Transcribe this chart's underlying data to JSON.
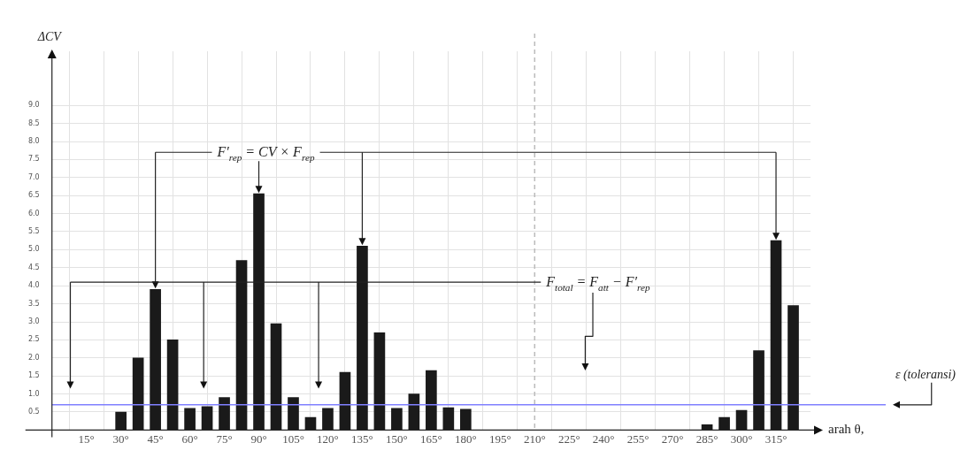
{
  "chart_data": {
    "type": "bar",
    "xlabel": "arah θ,",
    "ylabel": "ΔCV",
    "x": [
      30,
      37.5,
      45,
      52.5,
      60,
      67.5,
      75,
      82.5,
      90,
      97.5,
      105,
      112.5,
      120,
      127.5,
      135,
      142.5,
      150,
      157.5,
      165,
      172.5,
      180,
      285,
      292.5,
      300,
      307.5,
      315,
      322.5
    ],
    "values": [
      0.5,
      2.0,
      3.9,
      2.5,
      0.6,
      0.65,
      0.9,
      4.7,
      6.55,
      2.95,
      0.9,
      0.35,
      0.6,
      1.6,
      5.1,
      2.7,
      0.6,
      1.0,
      1.65,
      0.62,
      0.58,
      0.15,
      0.35,
      0.55,
      2.2,
      5.25,
      3.45
    ],
    "color": "#1a1a1a",
    "xlim": [
      0,
      330
    ],
    "xticks": [
      {
        "value": 15,
        "label": "15°"
      },
      {
        "value": 30,
        "label": "30°"
      },
      {
        "value": 45,
        "label": "45°"
      },
      {
        "value": 60,
        "label": "60°"
      },
      {
        "value": 75,
        "label": "75°"
      },
      {
        "value": 90,
        "label": "90°"
      },
      {
        "value": 105,
        "label": "105°"
      },
      {
        "value": 120,
        "label": "120°"
      },
      {
        "value": 135,
        "label": "135°"
      },
      {
        "value": 150,
        "label": "150°"
      },
      {
        "value": 165,
        "label": "165°"
      },
      {
        "value": 180,
        "label": "180°"
      },
      {
        "value": 195,
        "label": "195°"
      },
      {
        "value": 210,
        "label": "210°"
      },
      {
        "value": 225,
        "label": "225°"
      },
      {
        "value": 240,
        "label": "240°"
      },
      {
        "value": 255,
        "label": "255°"
      },
      {
        "value": 270,
        "label": "270°"
      },
      {
        "value": 285,
        "label": "285°"
      },
      {
        "value": 300,
        "label": "300°"
      },
      {
        "value": 315,
        "label": "315°"
      }
    ],
    "ylim": [
      0,
      10.5
    ],
    "yticks": [
      0.5,
      {
        "value": 1,
        "label": "1.0"
      },
      1.5,
      {
        "value": 2,
        "label": "2.0"
      },
      2.5,
      {
        "value": 3,
        "label": "3.0"
      },
      3.5,
      {
        "value": 4,
        "label": "4.0"
      },
      4.5,
      {
        "value": 5,
        "label": "5.0"
      },
      5.5,
      {
        "value": 6,
        "label": "6.0"
      },
      6.5,
      {
        "value": 7,
        "label": "7.0"
      },
      7.5,
      {
        "value": 8,
        "label": "8.0"
      },
      8.5,
      {
        "value": 9,
        "label": "9.0"
      }
    ],
    "grid": true,
    "legend": false,
    "ref_lines": [
      {
        "axis": "y",
        "value": 0.7,
        "label": "ε (toleransi)",
        "color": "#8080ff",
        "line_style": "solid"
      },
      {
        "axis": "x",
        "value": 210,
        "color": "#bbbbbb",
        "line_style": "dashed"
      }
    ],
    "annotations": [
      {
        "text": "F′$_{rep}$ = CV × F$_{rep}$",
        "x": 90,
        "y": 6.55
      },
      "F$_{total}$ = F$_{att}$ − F′$_{rep}$"
    ]
  }
}
